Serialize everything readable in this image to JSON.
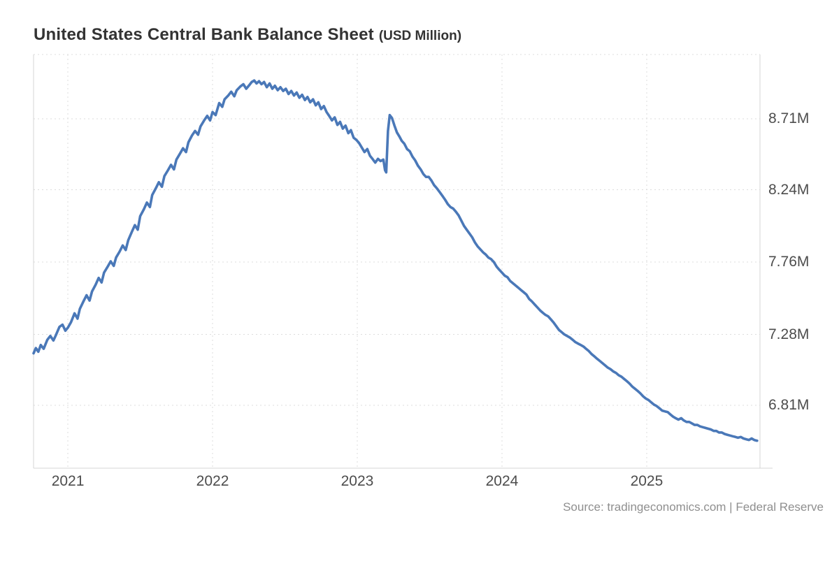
{
  "chart_data": {
    "type": "line",
    "title": "United States Central Bank Balance Sheet",
    "unit_label": "(USD Million)",
    "source": "Source: tradingeconomics.com | Federal Reserve",
    "legend": false,
    "grid": "dotted",
    "x_ticks": [
      2021,
      2022,
      2023,
      2024,
      2025
    ],
    "x_tick_labels": [
      "2021",
      "2022",
      "2023",
      "2024",
      "2025"
    ],
    "y_ticks": [
      8.71,
      8.24,
      7.76,
      7.28,
      6.81
    ],
    "y_tick_labels": [
      "8.71M",
      "8.24M",
      "7.76M",
      "7.28M",
      "6.81M"
    ],
    "x_range": [
      2020.763,
      2025.783
    ],
    "y_range": [
      6.393,
      9.137
    ],
    "colors": {
      "line": "#4a78b8",
      "grid": "#dcdcdc",
      "border": "#d4d4d4",
      "title": "#333333",
      "axis_labels": "#4d4d4d",
      "source_text": "#8f8f8f",
      "background": "#ffffff"
    },
    "series": [
      {
        "points": [
          [
            2020.763,
            7.155
          ],
          [
            2020.779,
            7.19
          ],
          [
            2020.796,
            7.165
          ],
          [
            2020.813,
            7.21
          ],
          [
            2020.833,
            7.185
          ],
          [
            2020.858,
            7.245
          ],
          [
            2020.879,
            7.27
          ],
          [
            2020.9,
            7.24
          ],
          [
            2020.917,
            7.275
          ],
          [
            2020.942,
            7.33
          ],
          [
            2020.963,
            7.345
          ],
          [
            2020.983,
            7.305
          ],
          [
            2021.0,
            7.325
          ],
          [
            2021.021,
            7.36
          ],
          [
            2021.046,
            7.42
          ],
          [
            2021.067,
            7.385
          ],
          [
            2021.083,
            7.45
          ],
          [
            2021.108,
            7.5
          ],
          [
            2021.129,
            7.54
          ],
          [
            2021.15,
            7.505
          ],
          [
            2021.167,
            7.565
          ],
          [
            2021.192,
            7.61
          ],
          [
            2021.213,
            7.655
          ],
          [
            2021.233,
            7.625
          ],
          [
            2021.25,
            7.69
          ],
          [
            2021.275,
            7.73
          ],
          [
            2021.296,
            7.765
          ],
          [
            2021.317,
            7.735
          ],
          [
            2021.333,
            7.79
          ],
          [
            2021.358,
            7.83
          ],
          [
            2021.379,
            7.87
          ],
          [
            2021.4,
            7.84
          ],
          [
            2021.417,
            7.905
          ],
          [
            2021.442,
            7.96
          ],
          [
            2021.463,
            8.005
          ],
          [
            2021.483,
            7.975
          ],
          [
            2021.5,
            8.065
          ],
          [
            2021.525,
            8.11
          ],
          [
            2021.546,
            8.155
          ],
          [
            2021.567,
            8.125
          ],
          [
            2021.583,
            8.205
          ],
          [
            2021.608,
            8.25
          ],
          [
            2021.629,
            8.29
          ],
          [
            2021.65,
            8.26
          ],
          [
            2021.667,
            8.33
          ],
          [
            2021.692,
            8.37
          ],
          [
            2021.713,
            8.405
          ],
          [
            2021.733,
            8.375
          ],
          [
            2021.75,
            8.44
          ],
          [
            2021.775,
            8.48
          ],
          [
            2021.796,
            8.515
          ],
          [
            2021.817,
            8.49
          ],
          [
            2021.833,
            8.555
          ],
          [
            2021.858,
            8.6
          ],
          [
            2021.879,
            8.63
          ],
          [
            2021.9,
            8.605
          ],
          [
            2021.917,
            8.66
          ],
          [
            2021.942,
            8.7
          ],
          [
            2021.963,
            8.73
          ],
          [
            2021.983,
            8.7
          ],
          [
            2022.0,
            8.755
          ],
          [
            2022.021,
            8.735
          ],
          [
            2022.046,
            8.815
          ],
          [
            2022.067,
            8.79
          ],
          [
            2022.083,
            8.84
          ],
          [
            2022.108,
            8.865
          ],
          [
            2022.129,
            8.89
          ],
          [
            2022.15,
            8.86
          ],
          [
            2022.167,
            8.9
          ],
          [
            2022.192,
            8.925
          ],
          [
            2022.213,
            8.94
          ],
          [
            2022.233,
            8.91
          ],
          [
            2022.25,
            8.93
          ],
          [
            2022.271,
            8.955
          ],
          [
            2022.288,
            8.965
          ],
          [
            2022.304,
            8.945
          ],
          [
            2022.321,
            8.96
          ],
          [
            2022.338,
            8.94
          ],
          [
            2022.356,
            8.955
          ],
          [
            2022.375,
            8.92
          ],
          [
            2022.394,
            8.945
          ],
          [
            2022.413,
            8.91
          ],
          [
            2022.431,
            8.93
          ],
          [
            2022.45,
            8.9
          ],
          [
            2022.469,
            8.92
          ],
          [
            2022.488,
            8.895
          ],
          [
            2022.506,
            8.91
          ],
          [
            2022.525,
            8.875
          ],
          [
            2022.544,
            8.895
          ],
          [
            2022.563,
            8.865
          ],
          [
            2022.581,
            8.885
          ],
          [
            2022.6,
            8.85
          ],
          [
            2022.619,
            8.87
          ],
          [
            2022.638,
            8.835
          ],
          [
            2022.656,
            8.855
          ],
          [
            2022.675,
            8.82
          ],
          [
            2022.694,
            8.84
          ],
          [
            2022.713,
            8.8
          ],
          [
            2022.731,
            8.82
          ],
          [
            2022.75,
            8.775
          ],
          [
            2022.769,
            8.795
          ],
          [
            2022.788,
            8.755
          ],
          [
            2022.806,
            8.73
          ],
          [
            2022.825,
            8.7
          ],
          [
            2022.844,
            8.72
          ],
          [
            2022.863,
            8.67
          ],
          [
            2022.881,
            8.69
          ],
          [
            2022.9,
            8.645
          ],
          [
            2022.919,
            8.665
          ],
          [
            2022.938,
            8.615
          ],
          [
            2022.956,
            8.635
          ],
          [
            2022.975,
            8.585
          ],
          [
            2022.994,
            8.57
          ],
          [
            2023.012,
            8.55
          ],
          [
            2023.031,
            8.52
          ],
          [
            2023.05,
            8.49
          ],
          [
            2023.069,
            8.51
          ],
          [
            2023.088,
            8.465
          ],
          [
            2023.105,
            8.445
          ],
          [
            2023.124,
            8.42
          ],
          [
            2023.143,
            8.445
          ],
          [
            2023.161,
            8.43
          ],
          [
            2023.18,
            8.44
          ],
          [
            2023.192,
            8.37
          ],
          [
            2023.2,
            8.355
          ],
          [
            2023.212,
            8.63
          ],
          [
            2023.224,
            8.735
          ],
          [
            2023.24,
            8.715
          ],
          [
            2023.257,
            8.665
          ],
          [
            2023.274,
            8.62
          ],
          [
            2023.29,
            8.595
          ],
          [
            2023.307,
            8.565
          ],
          [
            2023.325,
            8.545
          ],
          [
            2023.344,
            8.51
          ],
          [
            2023.363,
            8.495
          ],
          [
            2023.381,
            8.46
          ],
          [
            2023.4,
            8.435
          ],
          [
            2023.419,
            8.4
          ],
          [
            2023.438,
            8.375
          ],
          [
            2023.456,
            8.345
          ],
          [
            2023.475,
            8.325
          ],
          [
            2023.494,
            8.325
          ],
          [
            2023.513,
            8.3
          ],
          [
            2023.531,
            8.27
          ],
          [
            2023.55,
            8.25
          ],
          [
            2023.569,
            8.225
          ],
          [
            2023.588,
            8.2
          ],
          [
            2023.606,
            8.175
          ],
          [
            2023.625,
            8.145
          ],
          [
            2023.644,
            8.125
          ],
          [
            2023.663,
            8.115
          ],
          [
            2023.681,
            8.095
          ],
          [
            2023.7,
            8.07
          ],
          [
            2023.719,
            8.035
          ],
          [
            2023.738,
            8.0
          ],
          [
            2023.756,
            7.975
          ],
          [
            2023.775,
            7.95
          ],
          [
            2023.794,
            7.925
          ],
          [
            2023.813,
            7.89
          ],
          [
            2023.831,
            7.865
          ],
          [
            2023.85,
            7.845
          ],
          [
            2023.869,
            7.825
          ],
          [
            2023.888,
            7.81
          ],
          [
            2023.906,
            7.79
          ],
          [
            2023.925,
            7.78
          ],
          [
            2023.944,
            7.76
          ],
          [
            2023.963,
            7.73
          ],
          [
            2023.981,
            7.71
          ],
          [
            2024.0,
            7.69
          ],
          [
            2024.019,
            7.67
          ],
          [
            2024.038,
            7.66
          ],
          [
            2024.056,
            7.635
          ],
          [
            2024.075,
            7.62
          ],
          [
            2024.094,
            7.605
          ],
          [
            2024.113,
            7.59
          ],
          [
            2024.131,
            7.575
          ],
          [
            2024.15,
            7.56
          ],
          [
            2024.169,
            7.545
          ],
          [
            2024.188,
            7.515
          ],
          [
            2024.206,
            7.5
          ],
          [
            2024.225,
            7.48
          ],
          [
            2024.244,
            7.46
          ],
          [
            2024.263,
            7.44
          ],
          [
            2024.281,
            7.425
          ],
          [
            2024.3,
            7.41
          ],
          [
            2024.319,
            7.4
          ],
          [
            2024.338,
            7.38
          ],
          [
            2024.356,
            7.36
          ],
          [
            2024.375,
            7.335
          ],
          [
            2024.394,
            7.31
          ],
          [
            2024.413,
            7.295
          ],
          [
            2024.431,
            7.28
          ],
          [
            2024.45,
            7.27
          ],
          [
            2024.469,
            7.26
          ],
          [
            2024.488,
            7.245
          ],
          [
            2024.506,
            7.23
          ],
          [
            2024.525,
            7.22
          ],
          [
            2024.544,
            7.21
          ],
          [
            2024.563,
            7.2
          ],
          [
            2024.581,
            7.185
          ],
          [
            2024.6,
            7.17
          ],
          [
            2024.619,
            7.15
          ],
          [
            2024.638,
            7.135
          ],
          [
            2024.656,
            7.12
          ],
          [
            2024.675,
            7.105
          ],
          [
            2024.694,
            7.09
          ],
          [
            2024.713,
            7.075
          ],
          [
            2024.731,
            7.06
          ],
          [
            2024.75,
            7.05
          ],
          [
            2024.769,
            7.035
          ],
          [
            2024.788,
            7.025
          ],
          [
            2024.806,
            7.01
          ],
          [
            2024.825,
            7.0
          ],
          [
            2024.844,
            6.985
          ],
          [
            2024.863,
            6.97
          ],
          [
            2024.881,
            6.955
          ],
          [
            2024.9,
            6.935
          ],
          [
            2024.919,
            6.92
          ],
          [
            2024.938,
            6.905
          ],
          [
            2024.956,
            6.89
          ],
          [
            2024.975,
            6.87
          ],
          [
            2024.994,
            6.855
          ],
          [
            2025.013,
            6.845
          ],
          [
            2025.031,
            6.83
          ],
          [
            2025.05,
            6.815
          ],
          [
            2025.069,
            6.805
          ],
          [
            2025.088,
            6.79
          ],
          [
            2025.107,
            6.775
          ],
          [
            2025.126,
            6.77
          ],
          [
            2025.145,
            6.765
          ],
          [
            2025.163,
            6.75
          ],
          [
            2025.182,
            6.735
          ],
          [
            2025.2,
            6.725
          ],
          [
            2025.219,
            6.715
          ],
          [
            2025.238,
            6.725
          ],
          [
            2025.256,
            6.71
          ],
          [
            2025.275,
            6.7
          ],
          [
            2025.294,
            6.7
          ],
          [
            2025.313,
            6.69
          ],
          [
            2025.331,
            6.68
          ],
          [
            2025.35,
            6.68
          ],
          [
            2025.369,
            6.67
          ],
          [
            2025.388,
            6.665
          ],
          [
            2025.406,
            6.66
          ],
          [
            2025.425,
            6.655
          ],
          [
            2025.444,
            6.65
          ],
          [
            2025.463,
            6.64
          ],
          [
            2025.481,
            6.64
          ],
          [
            2025.5,
            6.63
          ],
          [
            2025.519,
            6.63
          ],
          [
            2025.538,
            6.62
          ],
          [
            2025.556,
            6.615
          ],
          [
            2025.575,
            6.61
          ],
          [
            2025.594,
            6.605
          ],
          [
            2025.613,
            6.6
          ],
          [
            2025.631,
            6.595
          ],
          [
            2025.65,
            6.6
          ],
          [
            2025.669,
            6.59
          ],
          [
            2025.688,
            6.585
          ],
          [
            2025.706,
            6.58
          ],
          [
            2025.725,
            6.59
          ],
          [
            2025.744,
            6.58
          ],
          [
            2025.763,
            6.575
          ]
        ]
      }
    ]
  }
}
